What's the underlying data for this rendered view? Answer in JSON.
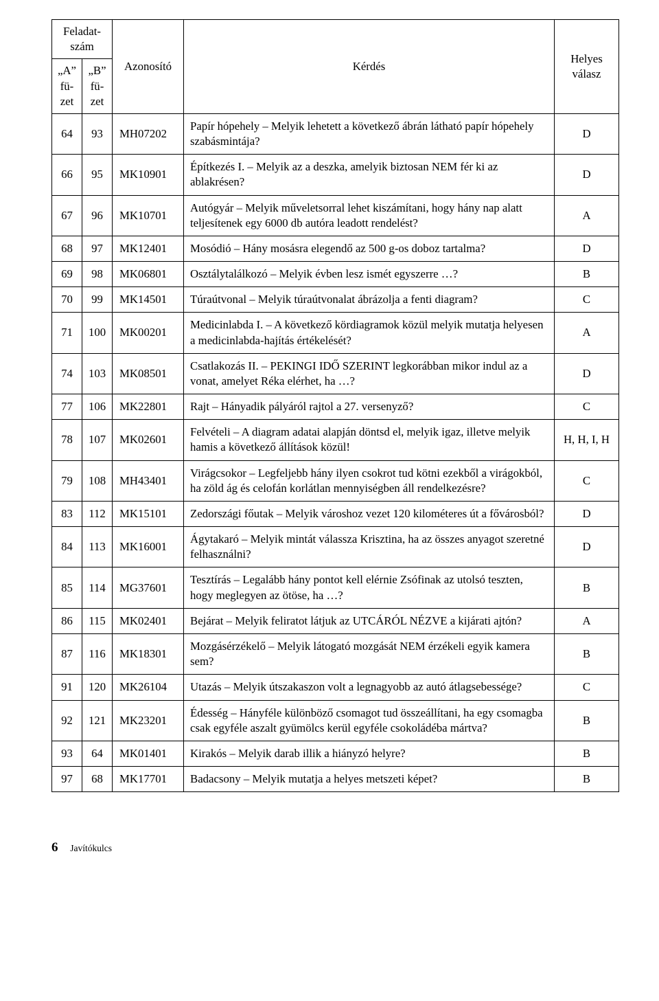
{
  "header": {
    "task_num": "Feladat-\nszám",
    "a": "„A”\nfü-\nzet",
    "b": "„B”\nfü-\nzet",
    "id": "Azonosító",
    "question": "Kérdés",
    "answer": "Helyes\nválasz"
  },
  "rows": [
    {
      "a": "64",
      "b": "93",
      "id": "MH07202",
      "q": "Papír hópehely – Melyik lehetett a következő ábrán látható papír hópehely szabásmintája?",
      "ans": "D"
    },
    {
      "a": "66",
      "b": "95",
      "id": "MK10901",
      "q": "Építkezés I. – Melyik az a deszka, amelyik biztosan NEM fér ki az ablakrésen?",
      "ans": "D"
    },
    {
      "a": "67",
      "b": "96",
      "id": "MK10701",
      "q": "Autógyár – Melyik műveletsorral lehet kiszámítani, hogy hány nap alatt teljesítenek egy 6000 db autóra leadott rendelést?",
      "ans": "A"
    },
    {
      "a": "68",
      "b": "97",
      "id": "MK12401",
      "q": "Mosódió – Hány mosásra elegendő az 500 g-os doboz tartalma?",
      "ans": "D"
    },
    {
      "a": "69",
      "b": "98",
      "id": "MK06801",
      "q": "Osztálytalálkozó – Melyik évben lesz ismét egyszerre …?",
      "ans": "B"
    },
    {
      "a": "70",
      "b": "99",
      "id": "MK14501",
      "q": "Túraútvonal – Melyik túraútvonalat ábrázolja a fenti diagram?",
      "ans": "C"
    },
    {
      "a": "71",
      "b": "100",
      "id": "MK00201",
      "q": "Medicinlabda I. – A következő kördiagramok közül melyik mutatja helyesen a medicinlabda-hajítás értékelését?",
      "ans": "A"
    },
    {
      "a": "74",
      "b": "103",
      "id": "MK08501",
      "q": "Csatlakozás II. – PEKINGI IDŐ SZERINT legkorábban mikor indul az a vonat, amelyet Réka elérhet, ha …?",
      "ans": "D"
    },
    {
      "a": "77",
      "b": "106",
      "id": "MK22801",
      "q": "Rajt – Hányadik pályáról rajtol a 27. versenyző?",
      "ans": "C"
    },
    {
      "a": "78",
      "b": "107",
      "id": "MK02601",
      "q": "Felvételi – A diagram adatai alapján döntsd el, melyik igaz, illetve melyik hamis a következő állítások közül!",
      "ans": "H, H, I, H"
    },
    {
      "a": "79",
      "b": "108",
      "id": "MH43401",
      "q": "Virágcsokor – Legfeljebb hány ilyen csokrot tud kötni ezekből a virágokból, ha zöld ág és celofán korlátlan mennyiségben áll rendelkezésre?",
      "ans": "C"
    },
    {
      "a": "83",
      "b": "112",
      "id": "MK15101",
      "q": "Zedországi főutak – Melyik városhoz vezet 120 kilométeres út a fővárosból?",
      "ans": "D"
    },
    {
      "a": "84",
      "b": "113",
      "id": "MK16001",
      "q": "Ágytakaró – Melyik mintát válassza Krisztina, ha az összes anyagot szeretné felhasználni?",
      "ans": "D"
    },
    {
      "a": "85",
      "b": "114",
      "id": "MG37601",
      "q": "Tesztírás – Legalább hány pontot kell elérnie Zsófinak az utolsó teszten, hogy meglegyen az ötöse, ha …?",
      "ans": "B"
    },
    {
      "a": "86",
      "b": "115",
      "id": "MK02401",
      "q": "Bejárat – Melyik feliratot látjuk az UTCÁRÓL NÉZVE a kijárati ajtón?",
      "ans": "A"
    },
    {
      "a": "87",
      "b": "116",
      "id": "MK18301",
      "q": "Mozgásérzékelő – Melyik látogató mozgását NEM érzékeli egyik kamera sem?",
      "ans": "B"
    },
    {
      "a": "91",
      "b": "120",
      "id": "MK26104",
      "q": "Utazás – Melyik útszakaszon volt a legnagyobb az autó átlagsebessége?",
      "ans": "C"
    },
    {
      "a": "92",
      "b": "121",
      "id": "MK23201",
      "q": "Édesség – Hányféle különböző csomagot tud összeállítani, ha egy csomagba csak egyféle aszalt gyümölcs kerül egyféle csokoládéba mártva?",
      "ans": "B"
    },
    {
      "a": "93",
      "b": "64",
      "id": "MK01401",
      "q": "Kirakós – Melyik darab illik a hiányzó helyre?",
      "ans": "B"
    },
    {
      "a": "97",
      "b": "68",
      "id": "MK17701",
      "q": "Badacsony – Melyik mutatja a helyes metszeti képet?",
      "ans": "B"
    }
  ],
  "footer": {
    "page": "6",
    "label": "Javítókulcs"
  }
}
